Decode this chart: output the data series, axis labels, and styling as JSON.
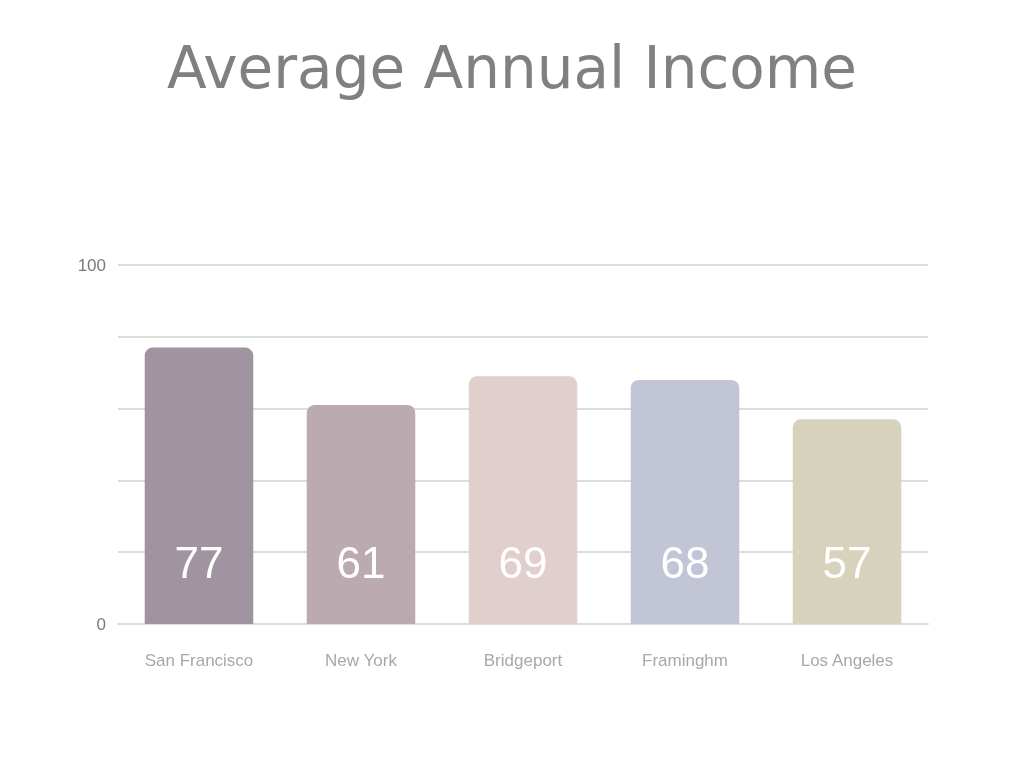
{
  "chart_data": {
    "type": "bar",
    "title": "Average Annual Income",
    "categories": [
      "San Francisco",
      "New York",
      "Bridgeport",
      "Framinghm",
      "Los Angeles"
    ],
    "values": [
      77,
      61,
      69,
      68,
      57
    ],
    "colors": [
      "#a094a0",
      "#bbabb0",
      "#e0cfcc",
      "#c2c5d6",
      "#d7d2bc"
    ],
    "ylim": [
      0,
      100
    ],
    "yticks": [
      0,
      {
        "value": 20,
        "label": null
      },
      {
        "value": 40,
        "label": null
      },
      {
        "value": 60,
        "label": null
      },
      {
        "value": 80,
        "label": null
      },
      100
    ],
    "grid": "y",
    "data_labels": true
  }
}
